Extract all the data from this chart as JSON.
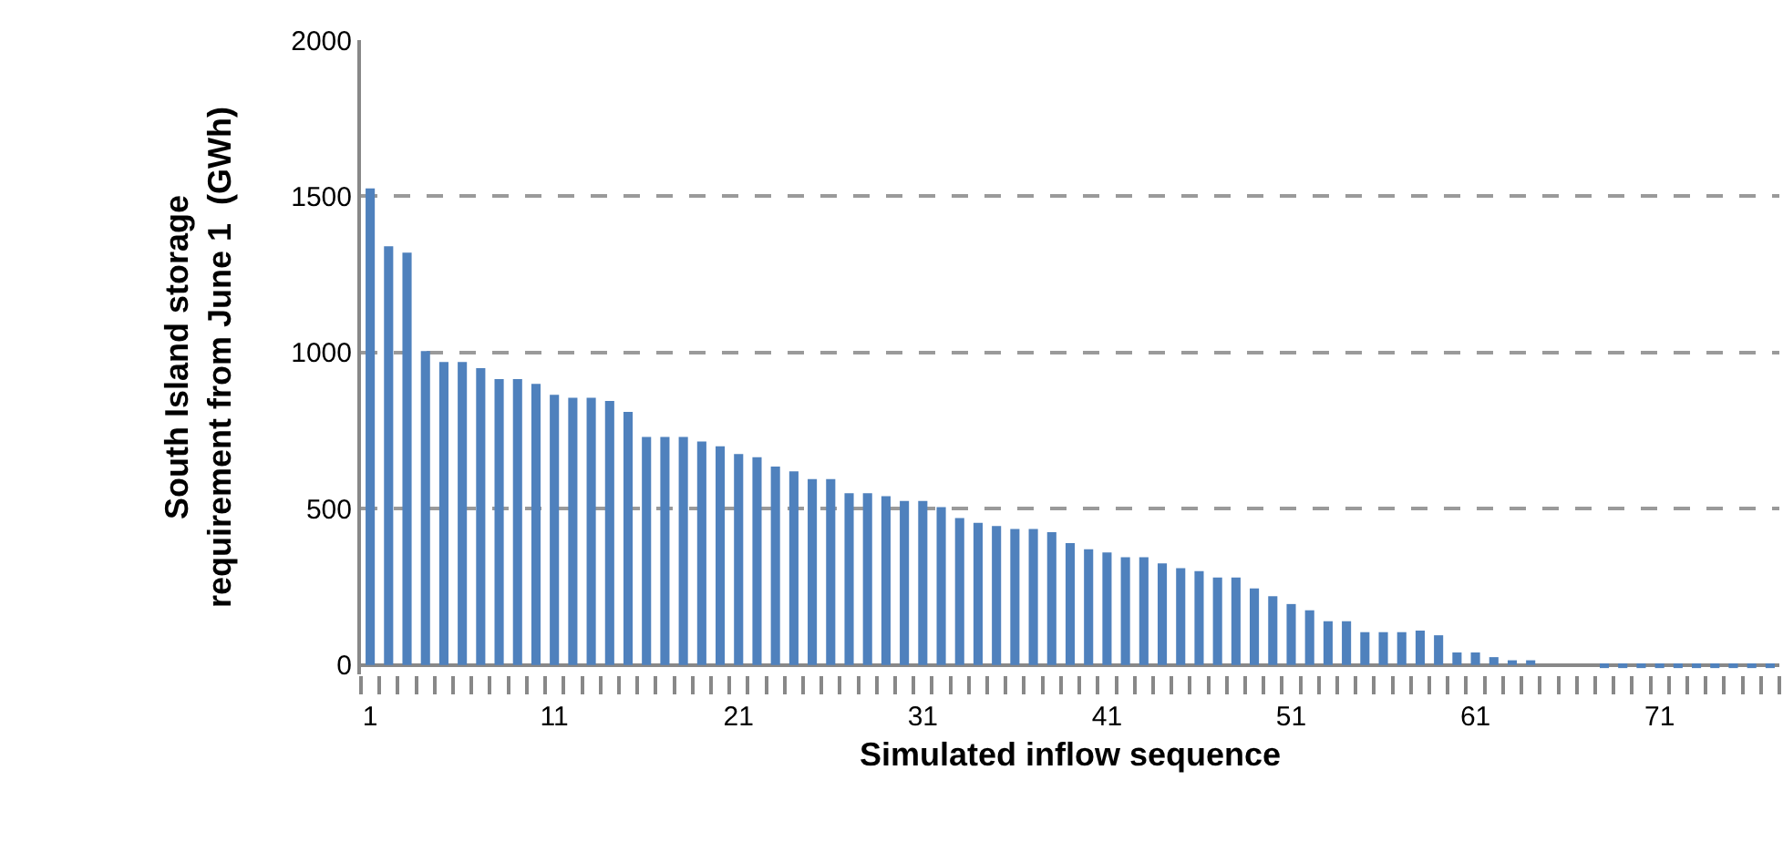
{
  "chart_data": {
    "type": "bar",
    "xlabel": "Simulated inflow sequence",
    "ylabel": "South Island storage\nrequirement from June 1  (GWh)",
    "categories": [
      "1",
      null,
      null,
      null,
      null,
      null,
      null,
      null,
      null,
      null,
      "11",
      null,
      null,
      null,
      null,
      null,
      null,
      null,
      null,
      null,
      "21",
      null,
      null,
      null,
      null,
      null,
      null,
      null,
      null,
      null,
      "31",
      null,
      null,
      null,
      null,
      null,
      null,
      null,
      null,
      null,
      "41",
      null,
      null,
      null,
      null,
      null,
      null,
      null,
      null,
      null,
      "51",
      null,
      null,
      null,
      null,
      null,
      null,
      null,
      null,
      null,
      "61",
      null,
      null,
      null,
      null,
      null,
      null,
      null,
      null,
      null,
      "71",
      null,
      null,
      null,
      null,
      null,
      null
    ],
    "values": [
      1525,
      1340,
      1320,
      1005,
      970,
      970,
      950,
      915,
      915,
      900,
      865,
      855,
      855,
      845,
      810,
      730,
      730,
      730,
      715,
      700,
      675,
      665,
      635,
      620,
      595,
      595,
      550,
      550,
      540,
      525,
      525,
      505,
      470,
      455,
      445,
      435,
      435,
      425,
      390,
      370,
      360,
      345,
      345,
      325,
      310,
      300,
      280,
      280,
      245,
      220,
      195,
      175,
      140,
      140,
      105,
      105,
      105,
      110,
      95,
      40,
      40,
      25,
      15,
      15,
      null,
      null,
      null,
      -10,
      -10,
      -10,
      -10,
      -10,
      -10,
      -10,
      -10,
      -10,
      -10
    ],
    "color": "#4f81bd",
    "ylim": [
      -30,
      2000
    ],
    "yticks": [
      0,
      500,
      1000,
      1500,
      2000
    ],
    "grid": "y"
  }
}
